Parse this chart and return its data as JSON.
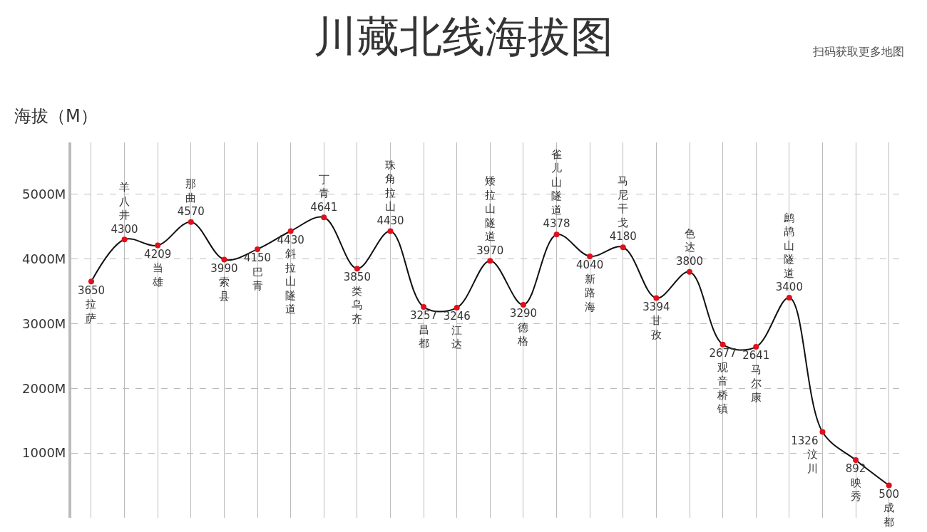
{
  "chart_data": {
    "type": "line",
    "title": "川藏北线海拔图",
    "ylabel": "海拔（M）",
    "annotations": [
      "扫码获取更多地图"
    ],
    "categories": [
      "拉萨",
      "羊八井",
      "当雄",
      "那曲",
      "索县",
      "巴青",
      "斜拉山隧道",
      "丁青",
      "类乌齐",
      "珠角拉山",
      "昌都",
      "江达",
      "矮拉山隧道",
      "德格",
      "雀儿山隧道",
      "新路海",
      "马尼干戈",
      "甘孜",
      "色达",
      "观音桥镇",
      "马尔康",
      "鹧鸪山隧道",
      "汶川",
      "映秀",
      "成都"
    ],
    "series": [
      {
        "color": "#111111",
        "values": [
          3650,
          4300,
          4209,
          4570,
          3990,
          4150,
          4430,
          4641,
          3850,
          4430,
          3257,
          3246,
          3970,
          3290,
          4378,
          4040,
          4180,
          3394,
          3800,
          2677,
          2641,
          3400,
          1326,
          892,
          500
        ],
        "colors": [
          "#e0101c",
          "#e0101c",
          "#e0101c",
          "#e0101c",
          "#e0101c",
          "#e0101c",
          "#e0101c",
          "#e0101c",
          "#e0101c",
          "#e0101c",
          "#e0101c",
          "#e0101c",
          "#e0101c",
          "#e0101c",
          "#e0101c",
          "#e0101c",
          "#e0101c",
          "#e0101c",
          "#e0101c",
          "#e0101c",
          "#e0101c",
          "#e0101c",
          "#e0101c",
          "#e0101c",
          "#e0101c"
        ]
      }
    ],
    "ylim": [
      0,
      5800
    ],
    "yticks": [
      {
        "value": 1000,
        "label": "1000M"
      },
      {
        "value": 2000,
        "label": "2000M"
      },
      {
        "value": 3000,
        "label": "3000M"
      },
      {
        "value": 4000,
        "label": "4000M"
      },
      {
        "value": 5000,
        "label": "5000M"
      }
    ],
    "grid": true,
    "legend": false,
    "tick_labels": "y",
    "marker": "circle",
    "line_style": "solid",
    "data_labels": true
  }
}
